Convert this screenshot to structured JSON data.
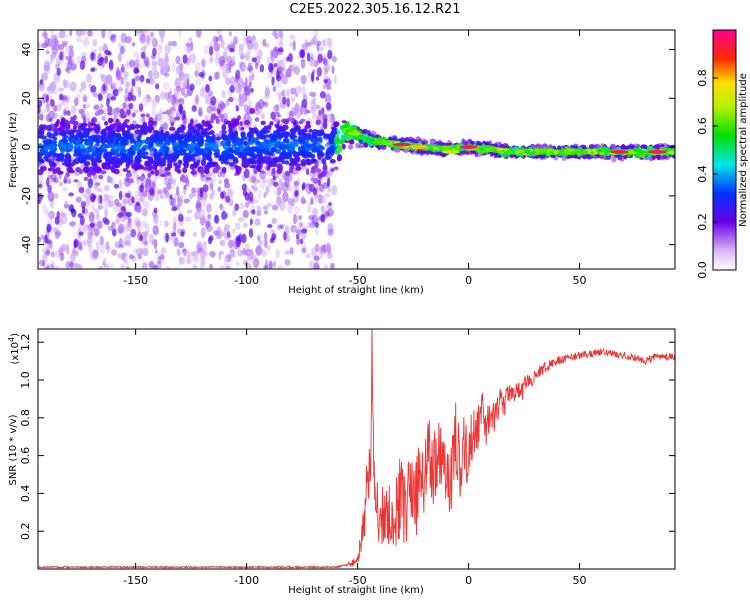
{
  "title": "C2E5.2022.305.16.12.R21",
  "colors": {
    "snr_line": "#ee3333",
    "spectrogram_core": "#5500dd",
    "spectrogram_halo": "#c9a8f2"
  },
  "chart_data": [
    {
      "type": "heatmap",
      "xlabel": "Height of straight line (km)",
      "ylabel": "Frequency (Hz)",
      "xlim": [
        -194,
        93
      ],
      "ylim": [
        -50,
        48
      ],
      "xticks": [
        -150,
        -100,
        -50,
        0,
        50
      ],
      "yticks": [
        -40,
        -20,
        0,
        20,
        40
      ],
      "colorbar": {
        "label": "Normalized spectral amplitude",
        "range": [
          0,
          1
        ],
        "ticks": [
          "0.0",
          "0.2",
          "0.4",
          "0.6",
          "0.8"
        ],
        "tick_values": [
          0.0,
          0.2,
          0.4,
          0.6,
          0.8
        ]
      },
      "ridge": {
        "x": [
          -194,
          -120,
          -60,
          -55,
          -50,
          -45,
          -40,
          -30,
          -20,
          -10,
          0,
          20,
          50,
          93
        ],
        "center_freq": [
          0,
          0,
          1,
          7,
          5,
          3,
          2,
          1,
          0,
          -1,
          0,
          -2,
          -2,
          -2
        ],
        "band_halfwidth": [
          13,
          13,
          12,
          7,
          4,
          3,
          2.5,
          2.5,
          2.5,
          2.5,
          2.5,
          2.5,
          2.5,
          2.5
        ]
      },
      "noise_cloud_x_range": [
        -194,
        -60
      ],
      "noise_cloud_freq_range": [
        -50,
        48
      ],
      "hotspots": [
        {
          "x": -30,
          "freq": 1,
          "amplitude": 0.95
        },
        {
          "x": -22,
          "freq": 0,
          "amplitude": 0.8
        },
        {
          "x": 0,
          "freq": 0,
          "amplitude": 0.95
        },
        {
          "x": 8,
          "freq": 0,
          "amplitude": 0.6
        },
        {
          "x": 50,
          "freq": -2,
          "amplitude": 0.6
        },
        {
          "x": 68,
          "freq": -2,
          "amplitude": 0.95
        },
        {
          "x": 85,
          "freq": -2,
          "amplitude": 0.95
        },
        {
          "x": -8,
          "freq": -2,
          "amplitude": 0.7
        }
      ]
    },
    {
      "type": "line",
      "xlabel": "Height of straight line (km)",
      "ylabel": "SNR (10 * v/v)",
      "y_multiplier": "(x10",
      "y_multiplier_exp": "4",
      "xlim": [
        -194,
        93
      ],
      "ylim": [
        0,
        1.27
      ],
      "xticks": [
        -150,
        -100,
        -50,
        0,
        50
      ],
      "yticks": [
        0.2,
        0.4,
        0.6,
        0.8,
        1.0,
        1.2
      ],
      "ytick_labels": [
        "0.2",
        "0.4",
        "0.6",
        "0.8",
        "1.0",
        "1.2"
      ],
      "series": [
        {
          "x": [
            -194,
            -150,
            -100,
            -60,
            -55,
            -50,
            -47,
            -45,
            -44,
            -43.5,
            -43,
            -42,
            -40,
            -37,
            -34,
            -31,
            -28,
            -26,
            -24,
            -22,
            -20,
            -18,
            -16,
            -14,
            -12,
            -10,
            -8,
            -6,
            -4,
            -2,
            0,
            2,
            4,
            6,
            8,
            10,
            12,
            14,
            16,
            18,
            20,
            22,
            24,
            26,
            28,
            30,
            35,
            40,
            45,
            50,
            55,
            60,
            65,
            70,
            75,
            80,
            85,
            93
          ],
          "y": [
            0.01,
            0.01,
            0.01,
            0.01,
            0.02,
            0.05,
            0.25,
            0.55,
            0.7,
            1.25,
            0.6,
            0.35,
            0.25,
            0.35,
            0.2,
            0.4,
            0.3,
            0.45,
            0.35,
            0.5,
            0.45,
            0.6,
            0.45,
            0.65,
            0.5,
            0.55,
            0.45,
            0.7,
            0.55,
            0.65,
            0.6,
            0.75,
            0.7,
            0.85,
            0.75,
            0.85,
            0.8,
            0.9,
            0.85,
            0.95,
            0.9,
            0.95,
            0.93,
            1.0,
            0.98,
            1.03,
            1.07,
            1.1,
            1.12,
            1.13,
            1.14,
            1.15,
            1.14,
            1.13,
            1.12,
            1.1,
            1.13,
            1.12
          ],
          "noise_amplitude": [
            0.004,
            0.004,
            0.004,
            0.004,
            0.006,
            0.03,
            0.1,
            0.2,
            0.2,
            0.1,
            0.2,
            0.2,
            0.15,
            0.2,
            0.15,
            0.25,
            0.2,
            0.25,
            0.2,
            0.25,
            0.2,
            0.22,
            0.2,
            0.22,
            0.2,
            0.2,
            0.18,
            0.2,
            0.18,
            0.18,
            0.16,
            0.15,
            0.14,
            0.12,
            0.1,
            0.1,
            0.08,
            0.08,
            0.07,
            0.06,
            0.06,
            0.05,
            0.05,
            0.04,
            0.04,
            0.03,
            0.03,
            0.025,
            0.02,
            0.02,
            0.02,
            0.02,
            0.02,
            0.02,
            0.02,
            0.02,
            0.02,
            0.02
          ]
        }
      ]
    }
  ]
}
